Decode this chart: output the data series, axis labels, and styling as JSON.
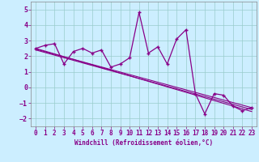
{
  "xlabel": "Windchill (Refroidissement éolien,°C)",
  "x_data": [
    0,
    1,
    2,
    3,
    4,
    5,
    6,
    7,
    8,
    9,
    10,
    11,
    12,
    13,
    14,
    15,
    16,
    17,
    18,
    19,
    20,
    21,
    22,
    23
  ],
  "y_data": [
    2.5,
    2.7,
    2.8,
    1.5,
    2.3,
    2.5,
    2.2,
    2.4,
    1.3,
    1.5,
    1.9,
    4.8,
    2.2,
    2.6,
    1.5,
    3.1,
    3.7,
    -0.4,
    -1.7,
    -0.4,
    -0.5,
    -1.2,
    -1.5,
    -1.3
  ],
  "trend1_x": [
    0,
    23
  ],
  "trend1_y": [
    2.5,
    -1.55
  ],
  "trend2_x": [
    0,
    23
  ],
  "trend2_y": [
    2.45,
    -1.3
  ],
  "trend3_x": [
    0,
    23
  ],
  "trend3_y": [
    2.4,
    -1.42
  ],
  "line_color": "#880088",
  "bg_color": "#cceeff",
  "grid_color": "#99cccc",
  "ylim": [
    -2.5,
    5.5
  ],
  "xlim": [
    -0.5,
    23.5
  ],
  "yticks": [
    -2,
    -1,
    0,
    1,
    2,
    3,
    4,
    5
  ],
  "xticks": [
    0,
    1,
    2,
    3,
    4,
    5,
    6,
    7,
    8,
    9,
    10,
    11,
    12,
    13,
    14,
    15,
    16,
    17,
    18,
    19,
    20,
    21,
    22,
    23
  ]
}
